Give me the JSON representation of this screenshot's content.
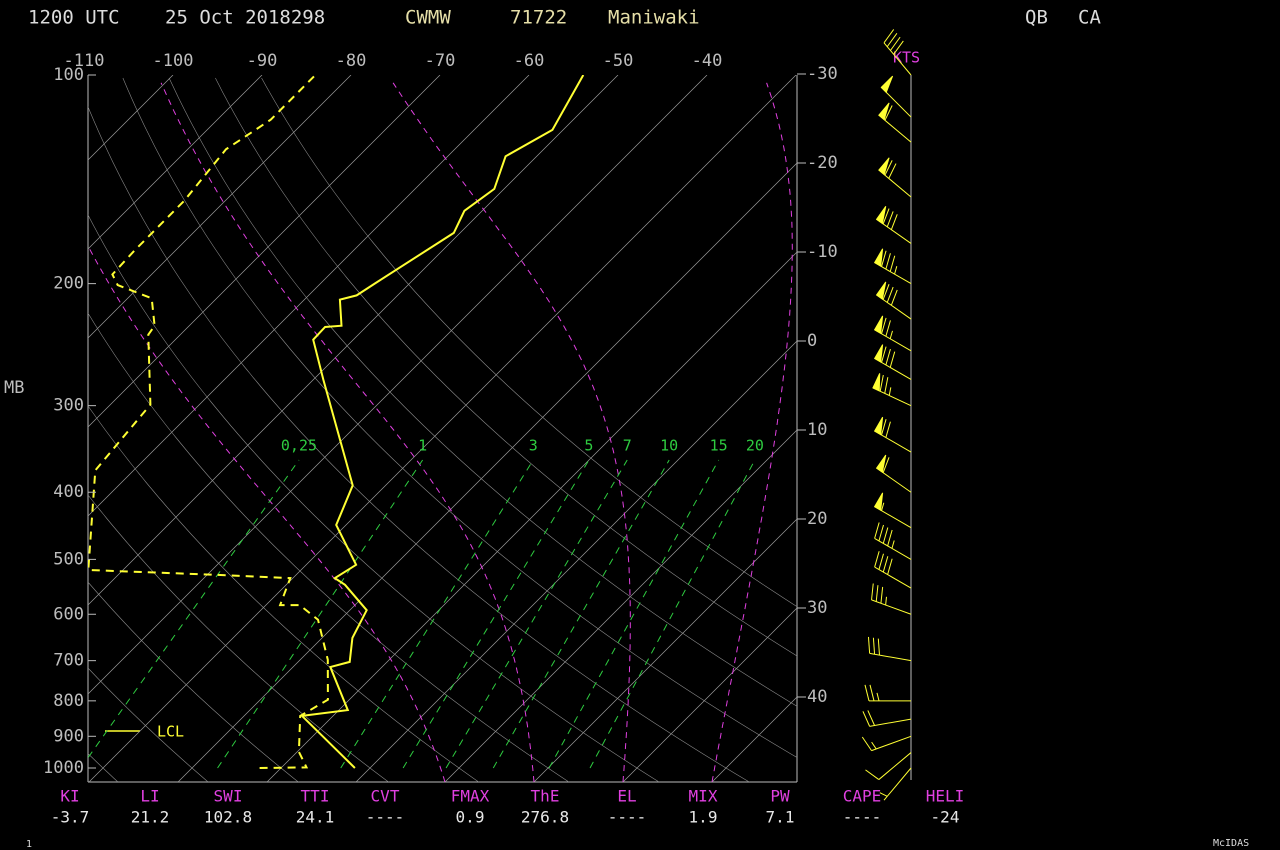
{
  "header": {
    "time": "1200 UTC",
    "date": "25 Oct 2018298",
    "station_id": "CWMW",
    "station_number": "71722",
    "station_name": "Maniwaki",
    "region": "QB",
    "country": "CA"
  },
  "chart_data": {
    "type": "skewt",
    "y_label": "MB",
    "speed_unit": "KTS",
    "lcl_label": "LCL",
    "log_scale": true,
    "ylim": [
      1000,
      100
    ],
    "yticks": [
      100,
      200,
      300,
      400,
      500,
      600,
      700,
      800,
      900,
      1000
    ],
    "xlim": [
      -110,
      -40
    ],
    "xticks": [
      -110,
      -100,
      -90,
      -80,
      -70,
      -60,
      -50,
      -40
    ],
    "isotherm_labels": [
      -30,
      -20,
      -10,
      0,
      10,
      20,
      30,
      40
    ],
    "mixing_ratio_labels": [
      {
        "value": 0.25,
        "label": "0,25"
      },
      1,
      3,
      5,
      7,
      10,
      15,
      20
    ],
    "series": [
      {
        "color": "#ffff33",
        "dashed": false,
        "pressure": [
          1000,
          841,
          825,
          715,
          703,
          649,
          592,
          544,
          532,
          509,
          446,
          391,
          275,
          241,
          231,
          230,
          211,
          208,
          200,
          169,
          157,
          146,
          131,
          120,
          100
        ],
        "values": [
          -1.7,
          -13.5,
          -9.0,
          -15.8,
          -14.2,
          -16.6,
          -18.1,
          -23.4,
          -25.3,
          -24.4,
          -31.1,
          -33.7,
          -48.9,
          -54.5,
          -54.6,
          -52.9,
          -56.0,
          -54.6,
          -53.9,
          -50.7,
          -52.0,
          -51.1,
          -53.5,
          -51.2,
          -53.9
        ]
      },
      {
        "color": "#ffff33",
        "dashed": true,
        "pressure": [
          1000,
          998,
          948,
          841,
          797,
          698,
          672,
          611,
          582,
          582,
          532,
          526,
          518,
          372,
          299,
          237,
          230,
          210,
          201,
          194,
          179,
          152,
          128,
          116,
          100
        ],
        "values": [
          -12.4,
          -7.2,
          -9.8,
          -13.7,
          -12.4,
          -16.9,
          -18.5,
          -22.5,
          -26.2,
          -28.4,
          -30.3,
          -39.7,
          -53.9,
          -64.3,
          -65.5,
          -73.6,
          -73.9,
          -77.3,
          -82.6,
          -84.4,
          -84.6,
          -84.6,
          -85.7,
          -84.0,
          -84.0
        ]
      }
    ],
    "barb_color": "#ffff33",
    "winds": {
      "pressure": [
        1000,
        950,
        900,
        850,
        800,
        700,
        600,
        550,
        500,
        450,
        400,
        350,
        300,
        275,
        250,
        225,
        200,
        175,
        150,
        125,
        115,
        100
      ],
      "direction": [
        220,
        230,
        250,
        260,
        270,
        280,
        290,
        300,
        300,
        300,
        305,
        300,
        295,
        300,
        300,
        305,
        300,
        305,
        310,
        310,
        315,
        320
      ],
      "speed": [
        5,
        10,
        15,
        20,
        25,
        30,
        35,
        40,
        45,
        55,
        60,
        70,
        75,
        80,
        75,
        80,
        85,
        80,
        70,
        60,
        50,
        40
      ]
    }
  },
  "indices": {
    "labels": [
      "KI",
      "LI",
      "SWI",
      "TTI",
      "CVT",
      "FMAX",
      "ThE",
      "EL",
      "MIX",
      "PW",
      "CAPE",
      "HELI"
    ],
    "values": [
      "-3.7",
      "21.2",
      "102.8",
      "24.1",
      "----",
      "0.9",
      "276.8",
      "----",
      "1.9",
      "7.1",
      "----",
      "-24"
    ]
  },
  "footer": {
    "page": "1",
    "brand": "McIDAS"
  }
}
